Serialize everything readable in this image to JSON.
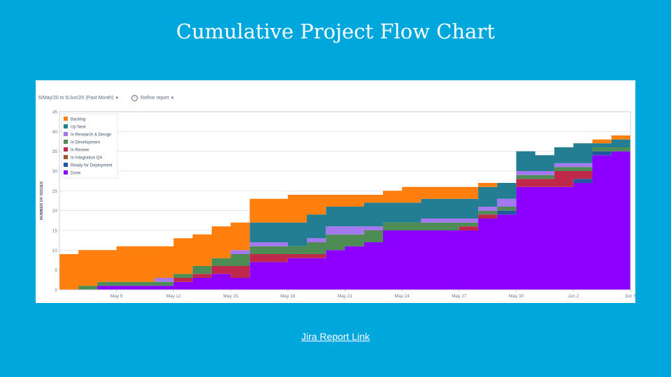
{
  "slide": {
    "title": "Cumulative Project Flow Chart",
    "link_label": "Jira Report Link"
  },
  "toolbar": {
    "date_range": "6/May/20 to 5/Jun/20 (Past Month)",
    "refine_label": "Refine report",
    "info_icon": "info-icon",
    "caret_icon": "chevron-down-icon"
  },
  "chart_data": {
    "type": "area",
    "stacked": true,
    "title": "",
    "xlabel": "",
    "ylabel": "NUMBER OF ISSUES",
    "ylim": [
      0,
      45
    ],
    "yticks": [
      0,
      5,
      10,
      15,
      20,
      25,
      30,
      35,
      40,
      45
    ],
    "x_domain": [
      "6/May/20",
      "5/Jun/20"
    ],
    "xticks": [
      "May 9",
      "May 12",
      "May 15",
      "May 18",
      "May 21",
      "May 24",
      "May 27",
      "May 30",
      "Jun 2",
      "Jun 5"
    ],
    "xtick_dates": [
      "9/May/20",
      "12/May/20",
      "15/May/20",
      "18/May/20",
      "21/May/20",
      "24/May/20",
      "27/May/20",
      "30/May/20",
      "2/Jun/20",
      "5/Jun/20"
    ],
    "grid": true,
    "legend_position": "top-left",
    "dates": [
      "6/May/20",
      "7/May/20",
      "8/May/20",
      "9/May/20",
      "10/May/20",
      "11/May/20",
      "12/May/20",
      "13/May/20",
      "14/May/20",
      "15/May/20",
      "16/May/20",
      "17/May/20",
      "18/May/20",
      "19/May/20",
      "20/May/20",
      "21/May/20",
      "22/May/20",
      "23/May/20",
      "24/May/20",
      "25/May/20",
      "26/May/20",
      "27/May/20",
      "28/May/20",
      "29/May/20",
      "30/May/20",
      "31/May/20",
      "1/Jun/20",
      "2/Jun/20",
      "3/Jun/20",
      "4/Jun/20",
      "5/Jun/20"
    ],
    "series": [
      {
        "name": "Done",
        "color": "#8b00ff",
        "values": [
          0,
          0,
          1,
          1,
          1,
          1,
          2,
          3,
          4,
          3,
          7,
          7,
          8,
          8,
          10,
          11,
          12,
          15,
          15,
          15,
          15,
          15,
          18,
          19,
          26,
          26,
          26,
          27,
          34,
          35,
          38
        ]
      },
      {
        "name": "Ready for Deployment",
        "color": "#1f5aa0",
        "values": [
          0,
          0,
          0,
          0,
          0,
          0,
          0,
          0,
          0,
          0,
          0,
          0,
          0,
          0,
          0,
          0,
          0,
          0,
          0,
          0,
          0,
          0,
          0,
          1,
          0,
          0,
          0,
          1,
          1,
          0,
          0
        ]
      },
      {
        "name": "In Integration QA",
        "color": "#a0522d",
        "values": [
          0,
          0,
          0,
          0,
          0,
          0,
          0,
          0,
          0,
          0,
          0,
          0,
          0,
          0,
          0,
          0,
          0,
          0,
          0,
          0,
          0,
          0,
          0,
          0,
          0,
          0,
          0,
          0,
          0,
          0,
          0
        ]
      },
      {
        "name": "In Review",
        "color": "#c0284b",
        "values": [
          0,
          0,
          0,
          0,
          0,
          0,
          1,
          1,
          2,
          3,
          2,
          2,
          1,
          1,
          0,
          0,
          0,
          0,
          0,
          0,
          0,
          1,
          1,
          0,
          2,
          2,
          4,
          2,
          0,
          0,
          0
        ]
      },
      {
        "name": "In Development",
        "color": "#4e8c55",
        "values": [
          0,
          1,
          1,
          1,
          1,
          1,
          1,
          2,
          2,
          3,
          2,
          2,
          2,
          3,
          4,
          3,
          3,
          2,
          2,
          2,
          2,
          1,
          1,
          1,
          1,
          1,
          1,
          1,
          1,
          1,
          1
        ]
      },
      {
        "name": "In Research & Design",
        "color": "#a478f0",
        "values": [
          0,
          0,
          0,
          0,
          0,
          1,
          0,
          0,
          0,
          1,
          1,
          1,
          0,
          1,
          2,
          2,
          1,
          0,
          0,
          1,
          1,
          1,
          1,
          2,
          1,
          1,
          1,
          1,
          0,
          0,
          0
        ]
      },
      {
        "name": "Up Next",
        "color": "#237e94",
        "values": [
          0,
          0,
          0,
          0,
          0,
          0,
          0,
          0,
          0,
          0,
          5,
          5,
          6,
          6,
          5,
          5,
          6,
          5,
          5,
          5,
          5,
          5,
          5,
          4,
          5,
          4,
          4,
          5,
          1,
          2,
          0
        ]
      },
      {
        "name": "Backlog",
        "color": "#ff7f0e",
        "values": [
          9,
          9,
          8,
          9,
          9,
          8,
          9,
          8,
          8,
          7,
          6,
          6,
          7,
          5,
          3,
          3,
          2,
          3,
          4,
          3,
          3,
          3,
          1,
          0,
          0,
          0,
          0,
          0,
          1,
          1,
          0
        ]
      }
    ]
  }
}
